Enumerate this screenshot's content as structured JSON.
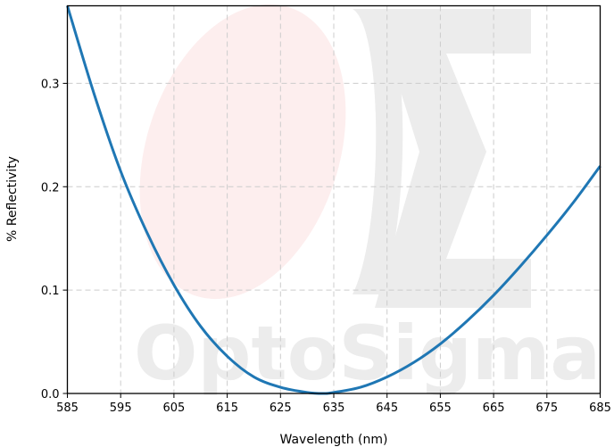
{
  "watermark": {
    "text": "OptoSigma"
  },
  "chart_data": {
    "type": "line",
    "title": "",
    "xlabel": "Wavelength (nm)",
    "ylabel": "% Reflectivity",
    "xlim": [
      585,
      685
    ],
    "ylim": [
      0,
      0.375
    ],
    "xticks": [
      585,
      595,
      605,
      615,
      625,
      635,
      645,
      655,
      665,
      675,
      685
    ],
    "yticks": [
      "0.0",
      "0.1",
      "0.2",
      "0.3"
    ],
    "grid": true,
    "legend": "none",
    "series": [
      {
        "color": "#1f77b4",
        "x": [
          585,
          590,
          595,
          600,
          605,
          610,
          615,
          620,
          625,
          630,
          633,
          635,
          640,
          645,
          650,
          655,
          660,
          665,
          670,
          675,
          680,
          685
        ],
        "y": [
          0.375,
          0.29,
          0.215,
          0.155,
          0.105,
          0.065,
          0.036,
          0.016,
          0.006,
          0.001,
          0.0,
          0.001,
          0.006,
          0.016,
          0.03,
          0.048,
          0.07,
          0.095,
          0.123,
          0.153,
          0.185,
          0.22
        ]
      }
    ]
  }
}
